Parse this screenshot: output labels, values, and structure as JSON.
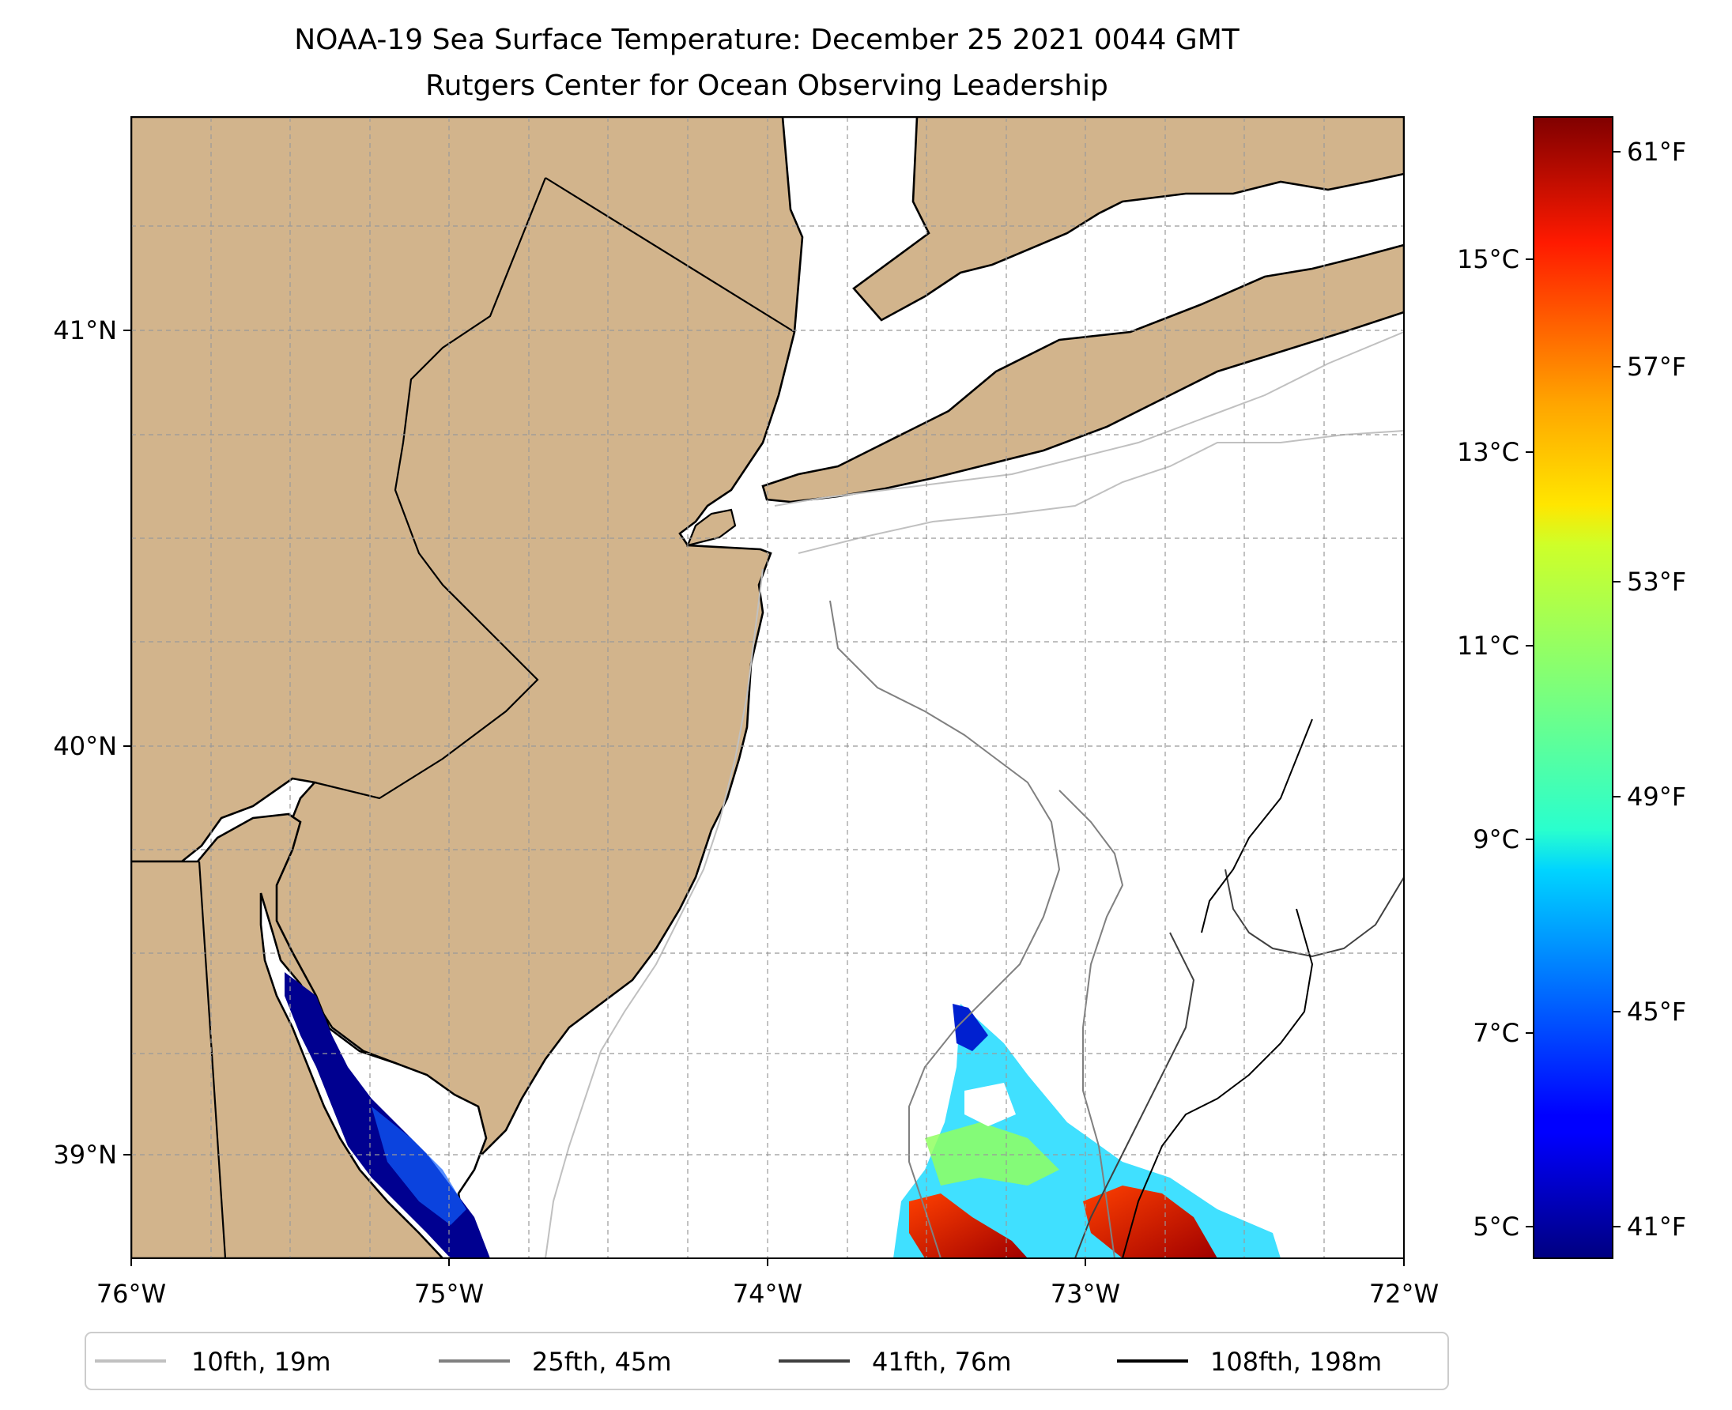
{
  "title": {
    "line1": "NOAA-19 Sea Surface Temperature: December 25 2021 0044 GMT",
    "line2": "Rutgers Center for Ocean Observing Leadership"
  },
  "map": {
    "land_color": "#d2b48c",
    "ocean_color": "#ffffff",
    "coastline_color": "#000000",
    "gridlines": "dashed, light gray",
    "extent": {
      "lon": [
        -76,
        -72
      ],
      "lat": [
        38.75,
        41.5
      ]
    },
    "x_ticks": [
      "76°W",
      "75°W",
      "74°W",
      "73°W",
      "72°W"
    ],
    "y_ticks": [
      "41°N",
      "40°N",
      "39°N"
    ]
  },
  "colorbar": {
    "colormap": "jet",
    "range_c": [
      4.7,
      16.5
    ],
    "celsius_ticks": [
      "15°C",
      "13°C",
      "11°C",
      "9°C",
      "7°C",
      "5°C"
    ],
    "fahrenheit_ticks": [
      "61°F",
      "57°F",
      "53°F",
      "49°F",
      "45°F",
      "41°F"
    ]
  },
  "legend": {
    "items": [
      {
        "label": "10fth, 19m",
        "color": "#c0c0c0"
      },
      {
        "label": "25fth, 45m",
        "color": "#808080"
      },
      {
        "label": "41fth, 76m",
        "color": "#404040"
      },
      {
        "label": "108fth, 198m",
        "color": "#000000"
      }
    ]
  }
}
